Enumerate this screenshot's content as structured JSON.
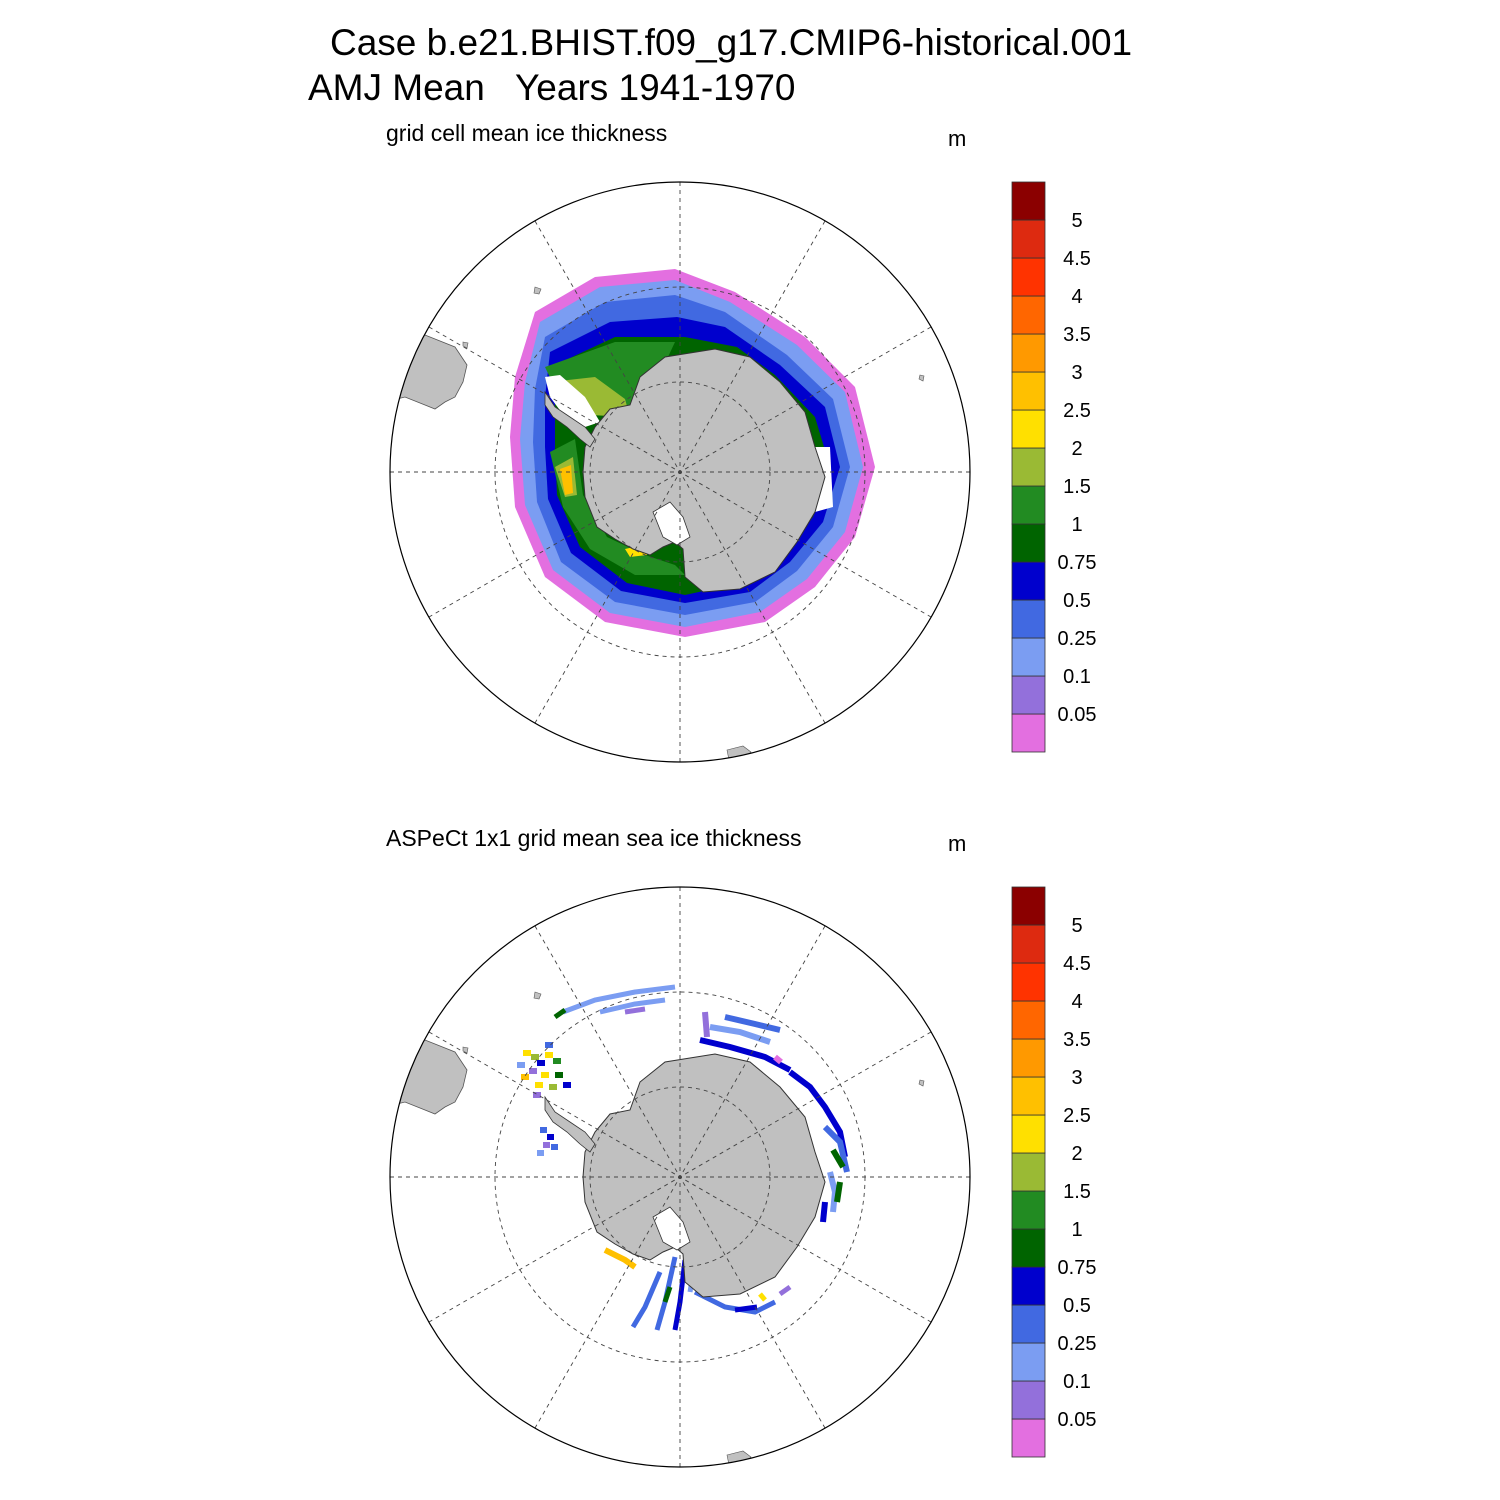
{
  "title": {
    "line1": "Case b.e21.BHIST.f09_g17.CMIP6-historical.001",
    "line2": "AMJ Mean   Years 1941-1970"
  },
  "panels": [
    {
      "id": "model",
      "subtitle": "grid cell mean ice thickness",
      "units": "m"
    },
    {
      "id": "obs",
      "subtitle": "ASPeCt 1x1 grid mean sea ice thickness",
      "units": "m"
    }
  ],
  "colorbar": {
    "levels": [
      "0.05",
      "0.1",
      "0.25",
      "0.5",
      "0.75",
      "1",
      "1.5",
      "2",
      "2.5",
      "3",
      "3.5",
      "4",
      "4.5",
      "5"
    ],
    "colors": [
      "#e36fe0",
      "#9370db",
      "#7b9df2",
      "#4169e1",
      "#0000cd",
      "#006400",
      "#228b22",
      "#9aba34",
      "#ffe000",
      "#ffc000",
      "#ff9900",
      "#ff6600",
      "#ff3300",
      "#dd2a10",
      "#8b0000"
    ]
  },
  "map": {
    "projection": "south polar stereographic",
    "land_color": "#c0c0c0",
    "graticule_style": "dashed"
  }
}
